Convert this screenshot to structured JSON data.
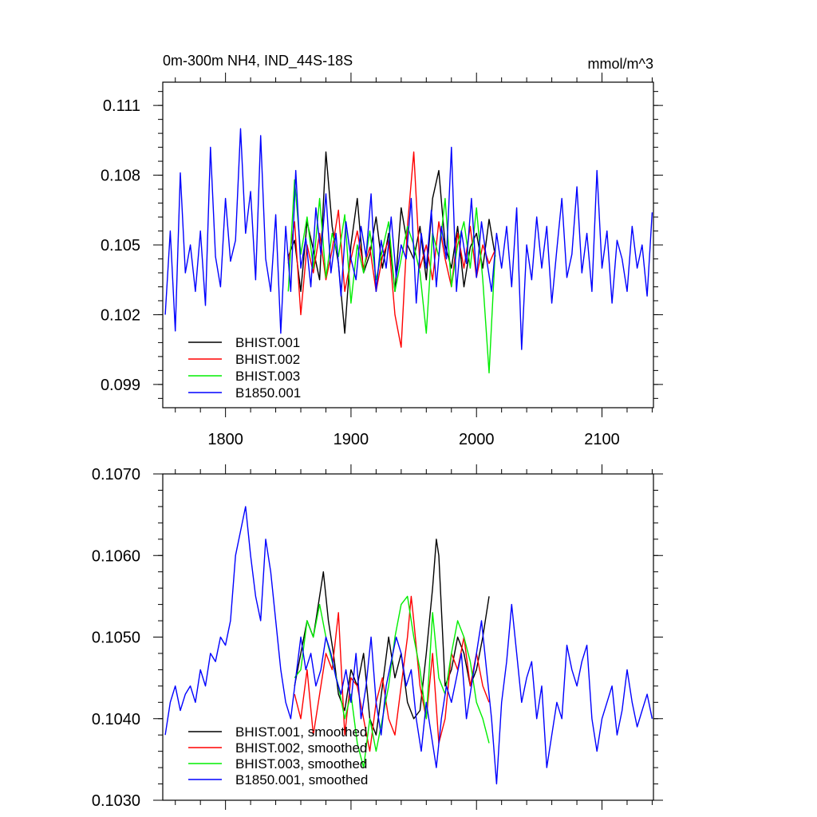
{
  "chart_data": [
    {
      "type": "line",
      "title_left": "0m-300m NH4, IND_44S-18S",
      "title_right": "mmol/m^3",
      "xlim": [
        1750,
        2141
      ],
      "ylim": [
        0.098,
        0.112
      ],
      "xticks": [
        1800,
        1900,
        2000,
        2100
      ],
      "xtick_labels": [
        "1800",
        "1900",
        "2000",
        "2100"
      ],
      "yticks": [
        0.099,
        0.102,
        0.105,
        0.108,
        0.111
      ],
      "ytick_labels": [
        "0.099",
        "0.102",
        "0.105",
        "0.108",
        "0.111"
      ],
      "grid": false,
      "legend_position": "lower-left",
      "series": [
        {
          "name": "BHIST.001",
          "color": "#000000",
          "x": [
            1850,
            1855,
            1860,
            1865,
            1870,
            1875,
            1880,
            1885,
            1890,
            1895,
            1900,
            1905,
            1910,
            1915,
            1920,
            1925,
            1930,
            1935,
            1940,
            1945,
            1950,
            1955,
            1960,
            1965,
            1970,
            1975,
            1980,
            1985,
            1990,
            1995,
            2000,
            2005,
            2010,
            2015
          ],
          "y": [
            0.1045,
            0.1052,
            0.103,
            0.106,
            0.1048,
            0.1035,
            0.109,
            0.1058,
            0.1042,
            0.1012,
            0.105,
            0.107,
            0.1038,
            0.1046,
            0.1062,
            0.104,
            0.1055,
            0.103,
            0.1066,
            0.105,
            0.1044,
            0.1058,
            0.1035,
            0.107,
            0.1082,
            0.105,
            0.104,
            0.1058,
            0.1032,
            0.1049,
            0.1055,
            0.104,
            0.1061,
            0.1045
          ]
        },
        {
          "name": "BHIST.002",
          "color": "#ff0000",
          "x": [
            1850,
            1855,
            1860,
            1865,
            1870,
            1875,
            1880,
            1885,
            1890,
            1895,
            1900,
            1905,
            1910,
            1915,
            1920,
            1925,
            1930,
            1935,
            1940,
            1945,
            1950,
            1955,
            1960,
            1965,
            1970,
            1975,
            1980,
            1985,
            1990,
            1995,
            2000,
            2005,
            2010,
            2015
          ],
          "y": [
            0.1042,
            0.106,
            0.102,
            0.105,
            0.1038,
            0.1055,
            0.1035,
            0.1048,
            0.1065,
            0.103,
            0.1044,
            0.1056,
            0.104,
            0.1049,
            0.103,
            0.1045,
            0.1052,
            0.102,
            0.1006,
            0.1058,
            0.109,
            0.104,
            0.105,
            0.1035,
            0.106,
            0.1044,
            0.1032,
            0.1055,
            0.104,
            0.1058,
            0.1036,
            0.105,
            0.1042,
            0.1048
          ]
        },
        {
          "name": "BHIST.003",
          "color": "#00ee00",
          "x": [
            1850,
            1855,
            1860,
            1865,
            1870,
            1875,
            1880,
            1885,
            1890,
            1895,
            1900,
            1905,
            1910,
            1915,
            1920,
            1925,
            1930,
            1935,
            1940,
            1945,
            1950,
            1955,
            1960,
            1965,
            1970,
            1975,
            1980,
            1985,
            1990,
            1995,
            2000,
            2005,
            2010,
            2015
          ],
          "y": [
            0.103,
            0.1078,
            0.1046,
            0.1062,
            0.104,
            0.107,
            0.1036,
            0.1055,
            0.1045,
            0.1063,
            0.1025,
            0.105,
            0.1038,
            0.1056,
            0.1035,
            0.1048,
            0.106,
            0.103,
            0.1044,
            0.1058,
            0.105,
            0.1038,
            0.1012,
            0.1055,
            0.1045,
            0.107,
            0.1032,
            0.105,
            0.106,
            0.104,
            0.1066,
            0.1035,
            0.0995,
            0.1048
          ]
        },
        {
          "name": "B1850.001",
          "color": "#0000ff",
          "x": [
            1752,
            1756,
            1760,
            1764,
            1768,
            1772,
            1776,
            1780,
            1784,
            1788,
            1792,
            1796,
            1800,
            1804,
            1808,
            1812,
            1816,
            1820,
            1824,
            1828,
            1832,
            1836,
            1840,
            1844,
            1848,
            1852,
            1856,
            1860,
            1864,
            1868,
            1872,
            1876,
            1880,
            1884,
            1888,
            1892,
            1896,
            1900,
            1904,
            1908,
            1912,
            1916,
            1920,
            1924,
            1928,
            1932,
            1936,
            1940,
            1944,
            1948,
            1952,
            1956,
            1960,
            1964,
            1968,
            1972,
            1976,
            1980,
            1984,
            1988,
            1992,
            1996,
            2000,
            2004,
            2008,
            2012,
            2016,
            2020,
            2024,
            2028,
            2032,
            2036,
            2040,
            2044,
            2048,
            2052,
            2056,
            2060,
            2064,
            2068,
            2072,
            2076,
            2080,
            2084,
            2088,
            2092,
            2096,
            2100,
            2104,
            2108,
            2112,
            2116,
            2120,
            2124,
            2128,
            2132,
            2136,
            2140
          ],
          "y": [
            0.102,
            0.1056,
            0.1013,
            0.1081,
            0.1038,
            0.105,
            0.103,
            0.1056,
            0.1024,
            0.1092,
            0.1045,
            0.1032,
            0.107,
            0.1043,
            0.1052,
            0.11,
            0.1055,
            0.1073,
            0.1035,
            0.1097,
            0.1044,
            0.103,
            0.1063,
            0.1012,
            0.1058,
            0.103,
            0.1082,
            0.104,
            0.1053,
            0.1032,
            0.1066,
            0.1046,
            0.1072,
            0.1038,
            0.1055,
            0.1028,
            0.106,
            0.1044,
            0.1035,
            0.1058,
            0.1045,
            0.1072,
            0.103,
            0.1052,
            0.104,
            0.1062,
            0.1036,
            0.105,
            0.1044,
            0.107,
            0.1025,
            0.1055,
            0.104,
            0.1065,
            0.1032,
            0.1058,
            0.1044,
            0.1092,
            0.103,
            0.1056,
            0.1042,
            0.107,
            0.1036,
            0.106,
            0.1044,
            0.103,
            0.1055,
            0.104,
            0.1058,
            0.1032,
            0.1066,
            0.1005,
            0.105,
            0.1035,
            0.1062,
            0.104,
            0.1058,
            0.1025,
            0.1048,
            0.107,
            0.1036,
            0.1046,
            0.1075,
            0.1038,
            0.1055,
            0.103,
            0.1082,
            0.104,
            0.1056,
            0.1025,
            0.1052,
            0.1044,
            0.103,
            0.1058,
            0.104,
            0.105,
            0.1028,
            0.1064
          ]
        }
      ]
    },
    {
      "type": "line",
      "xlim": [
        1750,
        2141
      ],
      "ylim": [
        0.103,
        0.107
      ],
      "xticks": [
        1800,
        1900,
        2000,
        2100
      ],
      "yticks": [
        0.103,
        0.104,
        0.105,
        0.106,
        0.107
      ],
      "ytick_labels": [
        "0.1030",
        "0.1040",
        "0.1050",
        "0.1060",
        "0.1070"
      ],
      "grid": false,
      "legend_position": "lower-left",
      "series": [
        {
          "name": "BHIST.001, smoothed",
          "color": "#000000",
          "x": [
            1855,
            1860,
            1865,
            1870,
            1875,
            1878,
            1882,
            1886,
            1890,
            1895,
            1900,
            1905,
            1910,
            1915,
            1920,
            1925,
            1930,
            1935,
            1940,
            1945,
            1950,
            1955,
            1960,
            1965,
            1968,
            1970,
            1975,
            1980,
            1985,
            1990,
            1995,
            2000,
            2005,
            2010
          ],
          "y": [
            0.1044,
            0.1048,
            0.1052,
            0.105,
            0.1055,
            0.1058,
            0.1052,
            0.1048,
            0.1043,
            0.1041,
            0.1046,
            0.1044,
            0.1048,
            0.104,
            0.1038,
            0.1044,
            0.105,
            0.1045,
            0.1048,
            0.1042,
            0.104,
            0.1041,
            0.1048,
            0.1056,
            0.1062,
            0.106,
            0.1044,
            0.1046,
            0.105,
            0.1048,
            0.1044,
            0.1046,
            0.105,
            0.1055
          ]
        },
        {
          "name": "BHIST.002, smoothed",
          "color": "#ff0000",
          "x": [
            1855,
            1860,
            1865,
            1870,
            1875,
            1880,
            1885,
            1890,
            1895,
            1900,
            1905,
            1910,
            1915,
            1920,
            1925,
            1930,
            1935,
            1940,
            1945,
            1948,
            1950,
            1955,
            1960,
            1965,
            1970,
            1975,
            1980,
            1985,
            1990,
            1995,
            2000,
            2005,
            2010
          ],
          "y": [
            0.1043,
            0.104,
            0.1046,
            0.1038,
            0.1043,
            0.1048,
            0.1046,
            0.1053,
            0.1038,
            0.1045,
            0.1044,
            0.104,
            0.1036,
            0.1042,
            0.1045,
            0.104,
            0.1038,
            0.1044,
            0.105,
            0.1055,
            0.1052,
            0.1044,
            0.104,
            0.1048,
            0.1037,
            0.104,
            0.1048,
            0.1046,
            0.105,
            0.1044,
            0.1048,
            0.1044,
            0.1042
          ]
        },
        {
          "name": "BHIST.003, smoothed",
          "color": "#00ee00",
          "x": [
            1855,
            1860,
            1865,
            1870,
            1875,
            1880,
            1885,
            1890,
            1895,
            1900,
            1905,
            1910,
            1915,
            1920,
            1925,
            1930,
            1935,
            1940,
            1945,
            1950,
            1955,
            1960,
            1965,
            1970,
            1975,
            1980,
            1985,
            1990,
            1995,
            2000,
            2005,
            2010
          ],
          "y": [
            0.1045,
            0.1046,
            0.1052,
            0.105,
            0.1054,
            0.105,
            0.1047,
            0.1044,
            0.104,
            0.1043,
            0.1037,
            0.1034,
            0.104,
            0.1036,
            0.104,
            0.1044,
            0.105,
            0.1054,
            0.1055,
            0.105,
            0.1046,
            0.104,
            0.1053,
            0.1045,
            0.1043,
            0.1048,
            0.1052,
            0.105,
            0.1047,
            0.1042,
            0.104,
            0.1037
          ]
        },
        {
          "name": "B1850.001, smoothed",
          "color": "#0000ff",
          "x": [
            1752,
            1756,
            1760,
            1764,
            1768,
            1772,
            1776,
            1780,
            1784,
            1788,
            1792,
            1796,
            1800,
            1804,
            1808,
            1812,
            1816,
            1820,
            1824,
            1828,
            1832,
            1836,
            1840,
            1844,
            1848,
            1852,
            1856,
            1860,
            1864,
            1868,
            1872,
            1876,
            1880,
            1884,
            1888,
            1892,
            1896,
            1900,
            1904,
            1908,
            1912,
            1916,
            1920,
            1924,
            1928,
            1932,
            1936,
            1940,
            1944,
            1948,
            1952,
            1956,
            1960,
            1964,
            1968,
            1972,
            1976,
            1980,
            1984,
            1988,
            1992,
            1996,
            2000,
            2004,
            2008,
            2012,
            2016,
            2020,
            2024,
            2028,
            2032,
            2036,
            2040,
            2044,
            2048,
            2052,
            2056,
            2060,
            2064,
            2068,
            2072,
            2076,
            2080,
            2084,
            2088,
            2092,
            2096,
            2100,
            2104,
            2108,
            2112,
            2116,
            2120,
            2124,
            2128,
            2132,
            2136,
            2140
          ],
          "y": [
            0.1038,
            0.1042,
            0.1044,
            0.1041,
            0.1043,
            0.1044,
            0.1042,
            0.1046,
            0.1044,
            0.1048,
            0.1047,
            0.105,
            0.1049,
            0.1052,
            0.106,
            0.1063,
            0.1066,
            0.106,
            0.1055,
            0.1052,
            0.1062,
            0.1058,
            0.1052,
            0.1046,
            0.1042,
            0.104,
            0.1045,
            0.105,
            0.1046,
            0.1048,
            0.1044,
            0.1046,
            0.105,
            0.1048,
            0.1045,
            0.1043,
            0.1046,
            0.1042,
            0.1048,
            0.104,
            0.1044,
            0.105,
            0.1042,
            0.1038,
            0.1044,
            0.1047,
            0.105,
            0.1048,
            0.1044,
            0.1046,
            0.104,
            0.1036,
            0.1042,
            0.1038,
            0.1034,
            0.104,
            0.1044,
            0.1042,
            0.1045,
            0.1048,
            0.104,
            0.1044,
            0.1048,
            0.1052,
            0.1046,
            0.104,
            0.1032,
            0.1042,
            0.1047,
            0.1054,
            0.1048,
            0.1042,
            0.1045,
            0.1047,
            0.104,
            0.1044,
            0.1034,
            0.1038,
            0.1042,
            0.104,
            0.1049,
            0.1046,
            0.1044,
            0.1047,
            0.1049,
            0.104,
            0.1036,
            0.104,
            0.1042,
            0.1044,
            0.1038,
            0.1041,
            0.1046,
            0.1042,
            0.1039,
            0.1041,
            0.1043,
            0.104
          ]
        }
      ]
    }
  ]
}
